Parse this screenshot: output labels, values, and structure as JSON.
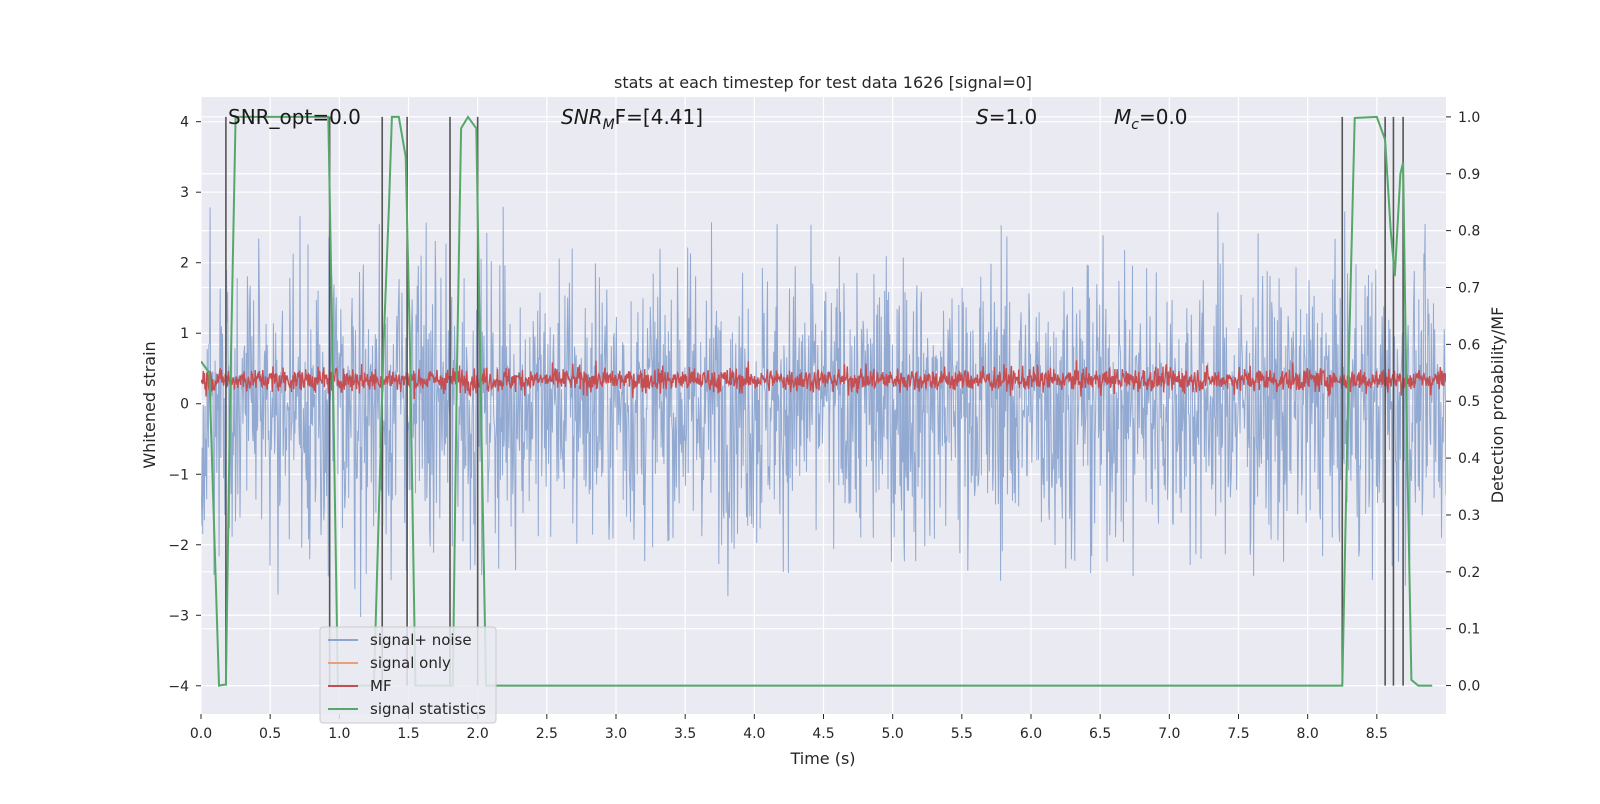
{
  "chart_data": {
    "type": "line",
    "title": "stats at each timestep for test data 1626 [signal=0]",
    "xlabel": "Time (s)",
    "ylabel_left": "Whitened strain",
    "ylabel_right": "Detection probability/MF",
    "xlim": [
      0.0,
      9.0
    ],
    "ylim_left": [
      -4.4,
      4.35
    ],
    "ylim_right": [
      -0.05,
      1.035
    ],
    "x_ticks": [
      "0.0",
      "0.5",
      "1.0",
      "1.5",
      "2.0",
      "2.5",
      "3.0",
      "3.5",
      "4.0",
      "4.5",
      "5.0",
      "5.5",
      "6.0",
      "6.5",
      "7.0",
      "7.5",
      "8.0",
      "8.5"
    ],
    "y_ticks_left": [
      "−4",
      "−3",
      "−2",
      "−1",
      "0",
      "1",
      "2",
      "3",
      "4"
    ],
    "y_ticks_right": [
      "0.0",
      "0.1",
      "0.2",
      "0.3",
      "0.4",
      "0.5",
      "0.6",
      "0.7",
      "0.8",
      "0.9",
      "1.0"
    ],
    "grid": true,
    "legend_position": "lower-left",
    "annotations": {
      "snr_opt": "SNR_opt=0.0",
      "snr_mf_sym": "SNR",
      "snr_mf_sub": "M",
      "snr_mf_rest": "F=[4.41]",
      "s_sym": "S",
      "s_rest": "=1.0",
      "mc_sym": "M",
      "mc_sub": "c",
      "mc_rest": "=0.0"
    },
    "series": [
      {
        "name": "signal+ noise",
        "color": "#8da5cf",
        "axis": "left",
        "pattern": "white noise between about -4 and 4"
      },
      {
        "name": "signal only",
        "color": "#e8a07a",
        "axis": "left",
        "values": []
      },
      {
        "name": "MF",
        "color": "#c44e52",
        "axis": "left",
        "pattern": "noisy band around 0.35"
      },
      {
        "name": "signal statistics",
        "color": "#55a868",
        "axis": "right",
        "x": [
          0.0,
          0.06,
          0.13,
          0.18,
          0.21,
          0.25,
          0.92,
          0.95,
          0.99,
          1.05,
          1.25,
          1.32,
          1.36,
          1.38,
          1.43,
          1.48,
          1.51,
          1.55,
          1.75,
          1.82,
          1.85,
          1.88,
          1.93,
          1.99,
          2.02,
          2.06,
          2.1,
          2.4,
          2.5,
          8.25,
          8.3,
          8.34,
          8.5,
          8.56,
          8.6,
          8.63,
          8.67,
          8.69,
          8.72,
          8.75,
          8.8,
          8.9
        ],
        "y": [
          0.57,
          0.55,
          0.0,
          0.002,
          0.5,
          1.0,
          1.0,
          0.6,
          0.0,
          0.0,
          0.0,
          0.6,
          0.85,
          1.0,
          1.0,
          0.93,
          0.6,
          0.0,
          0.0,
          0.0,
          0.55,
          0.98,
          1.0,
          0.98,
          0.55,
          0.0,
          0.0,
          0.0,
          0.0,
          0.0,
          0.6,
          0.998,
          1.0,
          0.96,
          0.8,
          0.72,
          0.9,
          0.92,
          0.4,
          0.01,
          0.0,
          0.0
        ]
      }
    ],
    "detection_lines_x": [
      0.18,
      0.93,
      1.31,
      1.49,
      1.8,
      2.0,
      8.25,
      8.56,
      8.62,
      8.69
    ],
    "legend_entries": [
      "signal+ noise",
      "signal only",
      "MF",
      "signal statistics"
    ]
  }
}
